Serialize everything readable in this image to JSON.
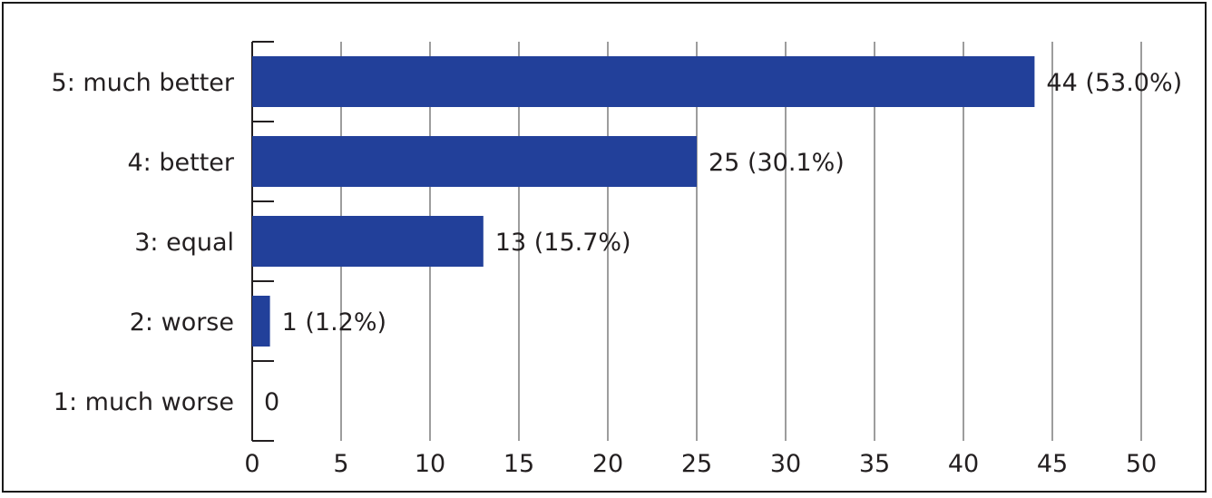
{
  "chart_data": {
    "type": "bar",
    "orientation": "horizontal",
    "categories": [
      "5: much better",
      "4: better",
      "3: equal",
      "2: worse",
      "1: much worse"
    ],
    "values": [
      44,
      25,
      13,
      1,
      0
    ],
    "data_labels": [
      "44 (53.0%)",
      "25 (30.1%)",
      "13 (15.7%)",
      "1 (1.2%)",
      "0"
    ],
    "x_ticks": [
      "0",
      "5",
      "10",
      "15",
      "20",
      "25",
      "30",
      "35",
      "40",
      "45",
      "50"
    ],
    "xlim": [
      0,
      50
    ],
    "grid": "vertical",
    "title": "",
    "xlabel": "",
    "ylabel": "",
    "colors": {
      "bar": "#22409a",
      "grid": "#9d9d9d",
      "axis": "#231f20"
    }
  }
}
